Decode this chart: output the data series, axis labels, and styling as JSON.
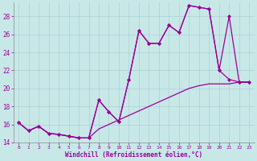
{
  "title": "",
  "xlabel": "Windchill (Refroidissement éolien,°C)",
  "ylabel": "",
  "bg_color": "#c8e8e8",
  "line_color": "#990099",
  "grid_color": "#aad0d0",
  "xlim": [
    -0.5,
    23.5
  ],
  "ylim": [
    14,
    29.5
  ],
  "yticks": [
    14,
    16,
    18,
    20,
    22,
    24,
    26,
    28
  ],
  "xticks": [
    0,
    1,
    2,
    3,
    4,
    5,
    6,
    7,
    8,
    9,
    10,
    11,
    12,
    13,
    14,
    15,
    16,
    17,
    18,
    19,
    20,
    21,
    22,
    23
  ],
  "series1_x": [
    0,
    1,
    2,
    3,
    4,
    5,
    6,
    7,
    8,
    9,
    10,
    11,
    12,
    13,
    14,
    15,
    16,
    17,
    18,
    19,
    20,
    21,
    22,
    23
  ],
  "series1_y": [
    16.2,
    15.3,
    15.8,
    15.0,
    14.9,
    14.7,
    14.5,
    14.5,
    18.7,
    17.4,
    16.3,
    21.0,
    26.4,
    25.0,
    25.0,
    27.0,
    26.2,
    29.2,
    29.0,
    28.8,
    22.0,
    21.0,
    20.7,
    20.7
  ],
  "series2_x": [
    0,
    1,
    2,
    3,
    4,
    5,
    6,
    7,
    8,
    9,
    10,
    11,
    12,
    13,
    14,
    15,
    16,
    17,
    18,
    19,
    20,
    21,
    22,
    23
  ],
  "series2_y": [
    16.2,
    15.3,
    15.8,
    15.0,
    14.9,
    14.7,
    14.5,
    14.5,
    18.7,
    17.4,
    16.3,
    21.0,
    26.4,
    25.0,
    25.0,
    27.0,
    26.2,
    29.2,
    29.0,
    28.8,
    22.0,
    28.0,
    20.7,
    20.7
  ],
  "series3_x": [
    0,
    1,
    2,
    3,
    4,
    5,
    6,
    7,
    8,
    9,
    10,
    11,
    12,
    13,
    14,
    15,
    16,
    17,
    18,
    19,
    20,
    21,
    22,
    23
  ],
  "series3_y": [
    16.2,
    15.3,
    15.8,
    15.0,
    14.9,
    14.7,
    14.5,
    14.5,
    15.5,
    16.0,
    16.5,
    17.0,
    17.5,
    18.0,
    18.5,
    19.0,
    19.5,
    20.0,
    20.3,
    20.5,
    20.5,
    20.5,
    20.7,
    20.7
  ]
}
